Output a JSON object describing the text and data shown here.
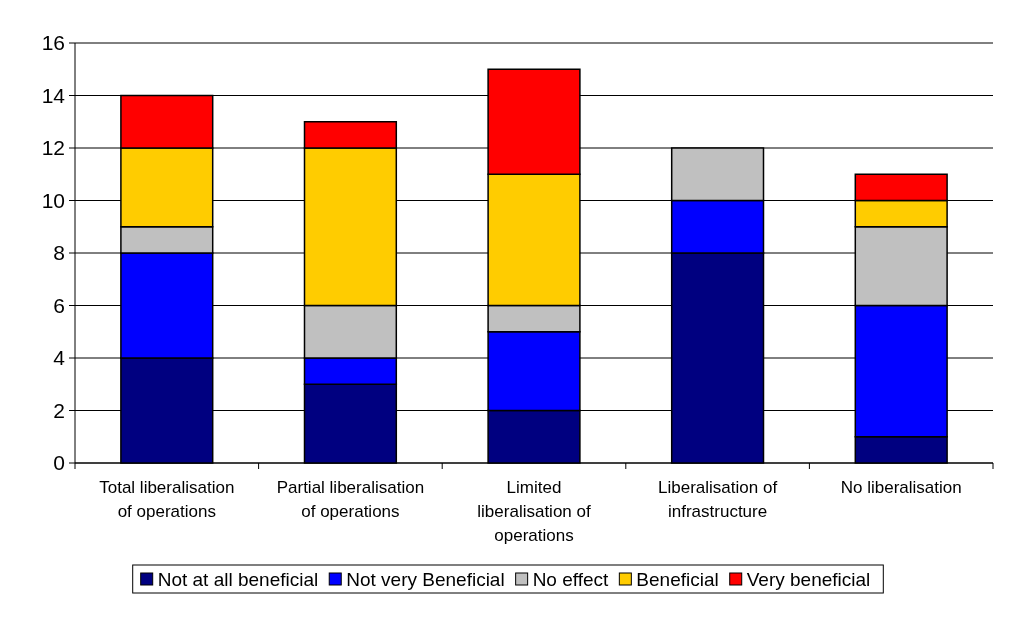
{
  "chart_data": {
    "type": "bar",
    "stacked": true,
    "categories": [
      "Total liberalisation of operations",
      "Partial liberalisation of operations",
      "Limited liberalisation of operations",
      "Liberalisation of infrastructure",
      "No liberalisation"
    ],
    "series": [
      {
        "name": "Not at all beneficial",
        "color": "#000080",
        "values": [
          4,
          3,
          2,
          8,
          1
        ]
      },
      {
        "name": "Not very Beneficial",
        "color": "#0000ff",
        "values": [
          4,
          1,
          3,
          2,
          5
        ]
      },
      {
        "name": "No effect",
        "color": "#c0c0c0",
        "values": [
          1,
          2,
          1,
          2,
          3
        ]
      },
      {
        "name": "Beneficial",
        "color": "#ffcc00",
        "values": [
          3,
          6,
          5,
          0,
          1
        ]
      },
      {
        "name": "Very beneficial",
        "color": "#ff0000",
        "values": [
          2,
          1,
          4,
          0,
          1
        ]
      }
    ],
    "ylim": [
      0,
      16
    ],
    "yticks": [
      0,
      2,
      4,
      6,
      8,
      10,
      12,
      14,
      16
    ],
    "grid": "y",
    "legend": "bottom"
  }
}
